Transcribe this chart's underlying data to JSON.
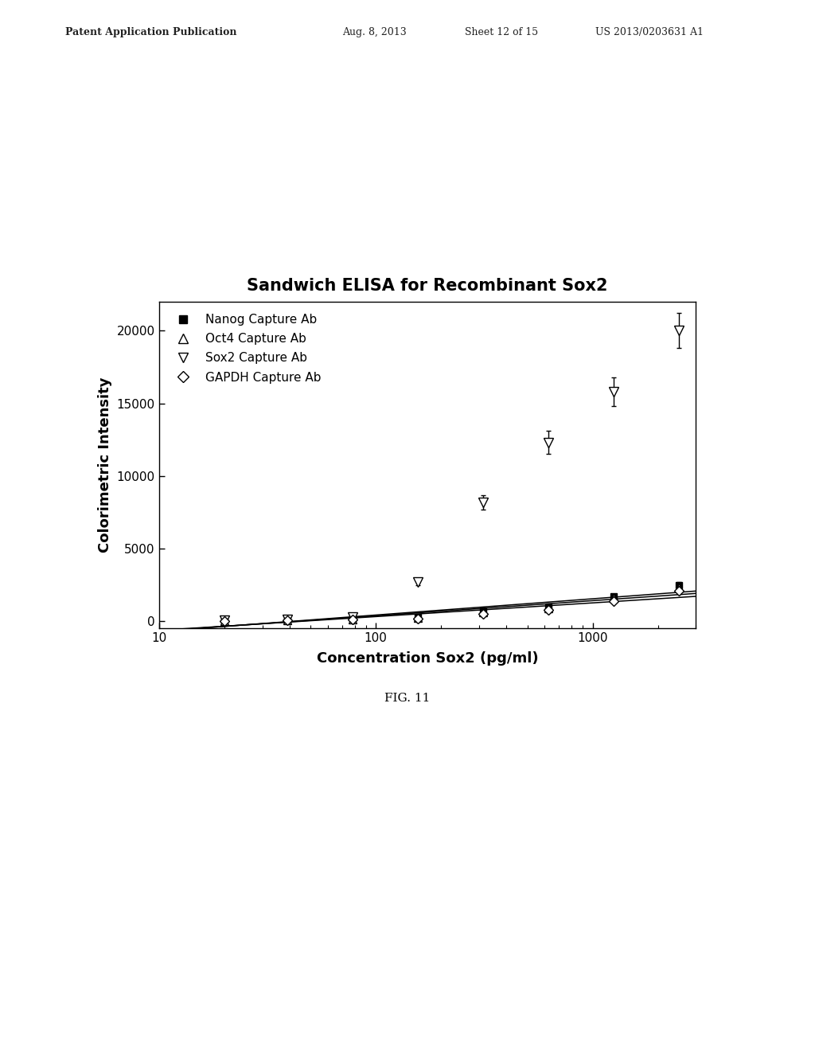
{
  "title": "Sandwich ELISA for Recombinant Sox2",
  "xlabel": "Concentration Sox2 (pg/ml)",
  "ylabel": "Colorimetric Intensity",
  "fig_label": "FIG. 11",
  "patent_line1": "Patent Application Publication",
  "patent_line2": "Aug. 8, 2013",
  "patent_line3": "Sheet 12 of 15",
  "patent_line4": "US 2013/0203631 A1",
  "x_concentrations": [
    20,
    39,
    78,
    156,
    313,
    625,
    1250,
    2500
  ],
  "sox2_data": [
    50,
    100,
    300,
    2700,
    8200,
    12300,
    15800,
    20000
  ],
  "nanog_data": [
    30,
    80,
    200,
    300,
    700,
    1000,
    1700,
    2500
  ],
  "oct4_data": [
    20,
    60,
    150,
    250,
    600,
    900,
    1600,
    2300
  ],
  "gapdh_data": [
    10,
    50,
    100,
    200,
    500,
    800,
    1400,
    2100
  ],
  "nanog_err": [
    20,
    30,
    50,
    50,
    80,
    100,
    150,
    200
  ],
  "oct4_err": [
    15,
    25,
    40,
    40,
    70,
    90,
    130,
    180
  ],
  "gapdh_err": [
    10,
    20,
    30,
    30,
    60,
    80,
    110,
    160
  ],
  "sox2_err": [
    30,
    50,
    80,
    200,
    500,
    800,
    1000,
    1200
  ],
  "ylim": [
    -500,
    22000
  ],
  "yticks": [
    0,
    5000,
    10000,
    15000,
    20000
  ],
  "xlim": [
    10,
    3000
  ],
  "background_color": "#ffffff",
  "legend_labels": [
    "Nanog Capture Ab",
    "Oct4 Capture Ab",
    "Sox2 Capture Ab",
    "GAPDH Capture Ab"
  ],
  "title_fontsize": 15,
  "axis_label_fontsize": 13,
  "tick_fontsize": 11,
  "legend_fontsize": 11,
  "header_fontsize": 9
}
